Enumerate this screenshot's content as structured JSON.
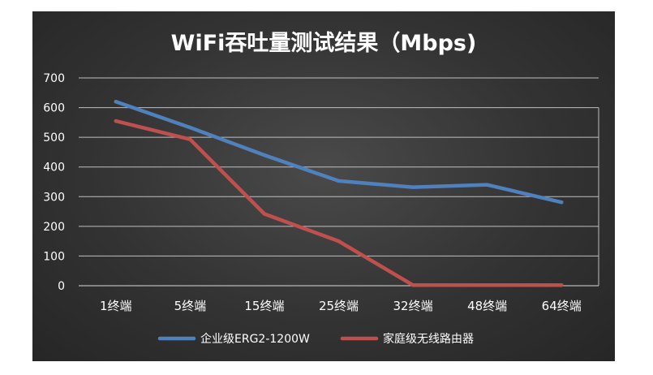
{
  "chart_data": {
    "type": "line",
    "title": "WiFi吞吐量测试结果（Mbps)",
    "categories": [
      "1终端",
      "5终端",
      "15终端",
      "25终端",
      "32终端",
      "48终端",
      "64终端"
    ],
    "series": [
      {
        "name": "企业级ERG2-1200W",
        "color": "#4f81bd",
        "values": [
          620,
          533,
          440,
          353,
          332,
          340,
          281
        ]
      },
      {
        "name": "家庭级无线路由器",
        "color": "#c0504d",
        "values": [
          555,
          493,
          242,
          150,
          2,
          2,
          2
        ]
      }
    ],
    "ylim": [
      0,
      700
    ],
    "yticks": [
      0,
      100,
      200,
      300,
      400,
      500,
      600,
      700
    ],
    "grid": true,
    "legend_position": "bottom",
    "background": "#333333"
  }
}
